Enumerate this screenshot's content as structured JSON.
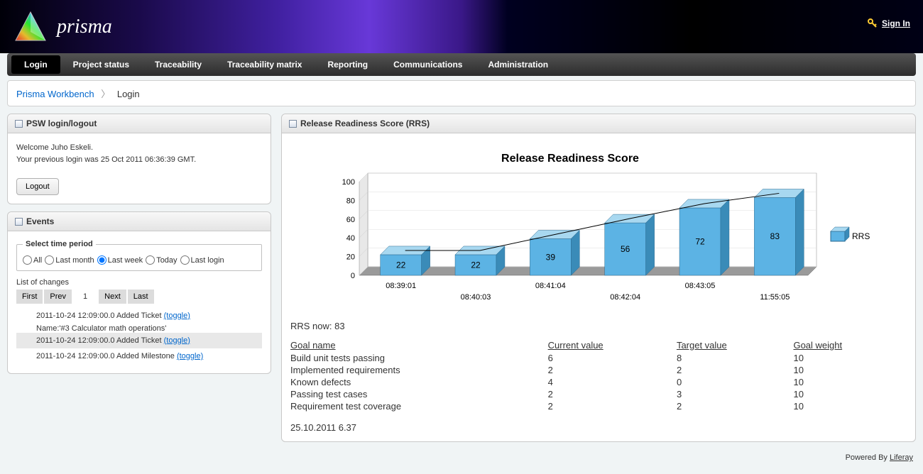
{
  "brand": {
    "name": "prisma"
  },
  "signin": {
    "label": "Sign In"
  },
  "nav": {
    "items": [
      {
        "label": "Login",
        "active": true
      },
      {
        "label": "Project status",
        "active": false
      },
      {
        "label": "Traceability",
        "active": false
      },
      {
        "label": "Traceability matrix",
        "active": false
      },
      {
        "label": "Reporting",
        "active": false
      },
      {
        "label": "Communications",
        "active": false
      },
      {
        "label": "Administration",
        "active": false
      }
    ]
  },
  "breadcrumb": {
    "root": "Prisma Workbench",
    "current": "Login"
  },
  "login_panel": {
    "title": "PSW login/logout",
    "welcome_line1": "Welcome Juho Eskeli.",
    "welcome_line2": "Your previous login was 25 Oct 2011 06:36:39 GMT.",
    "logout_label": "Logout"
  },
  "events_panel": {
    "title": "Events",
    "fieldset_legend": "Select time period",
    "radios": [
      {
        "label": "All",
        "checked": false
      },
      {
        "label": "Last month",
        "checked": false
      },
      {
        "label": "Last week",
        "checked": true
      },
      {
        "label": "Today",
        "checked": false
      },
      {
        "label": "Last login",
        "checked": false
      }
    ],
    "list_label": "List of changes",
    "pager": {
      "first": "First",
      "prev": "Prev",
      "page": "1",
      "next": "Next",
      "last": "Last"
    },
    "changes": [
      {
        "text": "2011-10-24 12:09:00.0 Added Ticket ",
        "toggle": "(toggle)",
        "expanded": true,
        "detail": "Name:'#3 Calculator math operations'"
      },
      {
        "text": "2011-10-24 12:09:00.0 Added Ticket ",
        "toggle": "(toggle)",
        "expanded": false,
        "alt": true
      },
      {
        "text": "2011-10-24 12:09:00.0 Added Milestone ",
        "toggle": "(toggle)",
        "expanded": false
      }
    ]
  },
  "rrs_panel": {
    "title": "Release Readiness Score (RRS)",
    "chart": {
      "type": "bar",
      "title": "Release Readiness Score",
      "title_fontsize": 16,
      "categories": [
        "08:39:01",
        "08:40:03",
        "08:41:04",
        "08:42:04",
        "08:43:05",
        "11:55:05"
      ],
      "values": [
        22,
        22,
        39,
        56,
        72,
        83
      ],
      "bar_face_color": "#5cb3e4",
      "bar_side_color": "#3a8bb8",
      "bar_top_color": "#a8d8f0",
      "ylim": [
        0,
        100
      ],
      "ytick_step": 20,
      "background_color": "#ffffff",
      "axis_color": "#888888",
      "floor_color": "#9a9a9a",
      "legend_label": "RRS",
      "value_label_color": "#000000",
      "trend_line_color": "#000000"
    },
    "rrs_now_label": "RRS now: ",
    "rrs_now_value": "83",
    "goals": {
      "headers": [
        "Goal name",
        "Current value",
        "Target value",
        "Goal weight"
      ],
      "rows": [
        [
          "Build unit tests passing",
          "6",
          "8",
          "10"
        ],
        [
          "Implemented requirements",
          "2",
          "2",
          "10"
        ],
        [
          "Known defects",
          "4",
          "0",
          "10"
        ],
        [
          "Passing test cases",
          "2",
          "3",
          "10"
        ],
        [
          "Requirement test coverage",
          "2",
          "2",
          "10"
        ]
      ]
    },
    "timestamp": "25.10.2011 6.37"
  },
  "footer": {
    "powered_by": "Powered By ",
    "link": "Liferay"
  }
}
